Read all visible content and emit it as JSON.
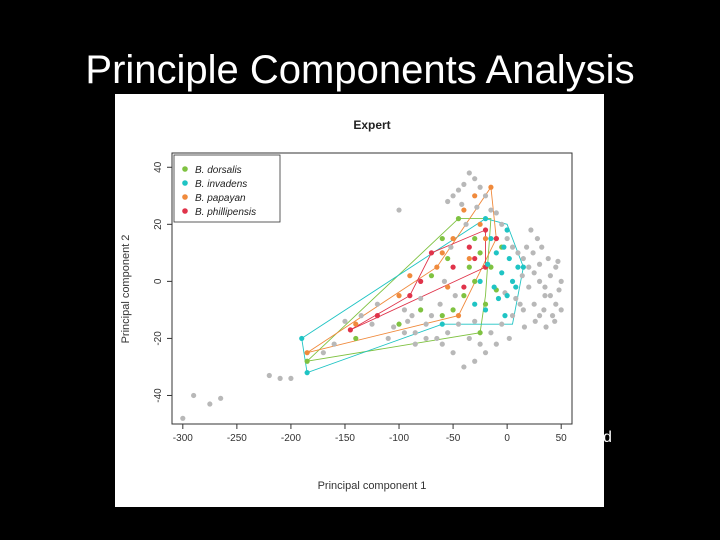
{
  "slide": {
    "title": "Principle Components Analysis",
    "stray_text": "d"
  },
  "chart_data": {
    "type": "scatter",
    "title": "Expert",
    "xlabel": "Principal component 1",
    "ylabel": "Principal component 2",
    "xlim": [
      -310,
      60
    ],
    "ylim": [
      -50,
      45
    ],
    "xticks": [
      -300,
      -250,
      -200,
      -150,
      -100,
      -50,
      0,
      50
    ],
    "yticks": [
      -40,
      -20,
      0,
      20,
      40
    ],
    "grid": false,
    "legend_position": "top-left",
    "series": [
      {
        "name": "B. dorsalis",
        "color": "#7fc241",
        "hull": [
          [
            -185,
            -28
          ],
          [
            -25,
            -18
          ],
          [
            -20,
            -5
          ],
          [
            -15,
            22
          ],
          [
            -45,
            22
          ],
          [
            -185,
            -28
          ]
        ],
        "points": [
          [
            -185,
            -28
          ],
          [
            -140,
            -20
          ],
          [
            -100,
            -15
          ],
          [
            -80,
            -10
          ],
          [
            -60,
            -12
          ],
          [
            -40,
            -5
          ],
          [
            -35,
            5
          ],
          [
            -25,
            10
          ],
          [
            -30,
            0
          ],
          [
            -20,
            -8
          ],
          [
            -50,
            -10
          ],
          [
            -70,
            2
          ],
          [
            -60,
            15
          ],
          [
            -45,
            22
          ],
          [
            -15,
            5
          ],
          [
            -10,
            -3
          ],
          [
            -25,
            -18
          ],
          [
            -55,
            8
          ],
          [
            -30,
            15
          ],
          [
            -5,
            12
          ]
        ]
      },
      {
        "name": "B. invadens",
        "color": "#1fc4c4",
        "hull": [
          [
            -190,
            -20
          ],
          [
            -185,
            -32
          ],
          [
            -60,
            -15
          ],
          [
            5,
            -15
          ],
          [
            15,
            5
          ],
          [
            0,
            20
          ],
          [
            -20,
            22
          ],
          [
            -190,
            -20
          ]
        ],
        "points": [
          [
            -190,
            -20
          ],
          [
            -185,
            -32
          ],
          [
            -60,
            -15
          ],
          [
            -20,
            -10
          ],
          [
            0,
            -5
          ],
          [
            5,
            0
          ],
          [
            10,
            5
          ],
          [
            -10,
            10
          ],
          [
            -15,
            15
          ],
          [
            -20,
            22
          ],
          [
            0,
            18
          ],
          [
            -5,
            3
          ],
          [
            -12,
            -2
          ],
          [
            2,
            8
          ],
          [
            -8,
            -6
          ],
          [
            15,
            5
          ],
          [
            -3,
            12
          ],
          [
            -18,
            6
          ],
          [
            -25,
            0
          ],
          [
            -30,
            -8
          ],
          [
            8,
            -2
          ],
          [
            -2,
            -12
          ]
        ]
      },
      {
        "name": "B. papayan",
        "color": "#f08a3c",
        "hull": [
          [
            -185,
            -25
          ],
          [
            -65,
            5
          ],
          [
            -15,
            33
          ],
          [
            -10,
            15
          ],
          [
            -45,
            -12
          ],
          [
            -185,
            -25
          ]
        ],
        "points": [
          [
            -185,
            -25
          ],
          [
            -140,
            -15
          ],
          [
            -100,
            -5
          ],
          [
            -90,
            2
          ],
          [
            -65,
            5
          ],
          [
            -60,
            10
          ],
          [
            -50,
            15
          ],
          [
            -40,
            25
          ],
          [
            -30,
            30
          ],
          [
            -15,
            33
          ],
          [
            -25,
            20
          ],
          [
            -20,
            15
          ],
          [
            -35,
            8
          ],
          [
            -10,
            15
          ],
          [
            -45,
            -12
          ],
          [
            -55,
            -2
          ]
        ]
      },
      {
        "name": "B. phillipensis",
        "color": "#e0334a",
        "hull": [
          [
            -145,
            -17
          ],
          [
            -90,
            -5
          ],
          [
            -70,
            10
          ],
          [
            -20,
            18
          ],
          [
            -20,
            5
          ],
          [
            -145,
            -17
          ]
        ],
        "points": [
          [
            -145,
            -17
          ],
          [
            -120,
            -12
          ],
          [
            -90,
            -5
          ],
          [
            -80,
            0
          ],
          [
            -70,
            10
          ],
          [
            -50,
            5
          ],
          [
            -40,
            -2
          ],
          [
            -30,
            8
          ],
          [
            -20,
            18
          ],
          [
            -20,
            5
          ],
          [
            -10,
            15
          ],
          [
            -35,
            12
          ]
        ]
      },
      {
        "name": "",
        "color": "#b8b8b8",
        "points": [
          [
            -300,
            -48
          ],
          [
            -290,
            -40
          ],
          [
            -275,
            -43
          ],
          [
            -265,
            -41
          ],
          [
            -220,
            -33
          ],
          [
            -210,
            -34
          ],
          [
            -200,
            -34
          ],
          [
            -170,
            -25
          ],
          [
            -160,
            -22
          ],
          [
            -150,
            -14
          ],
          [
            -135,
            -12
          ],
          [
            -125,
            -15
          ],
          [
            -120,
            -8
          ],
          [
            -95,
            -10
          ],
          [
            -92,
            -14
          ],
          [
            -88,
            -12
          ],
          [
            -85,
            -18
          ],
          [
            -80,
            -6
          ],
          [
            -75,
            -15
          ],
          [
            -70,
            -12
          ],
          [
            -100,
            25
          ],
          [
            -55,
            28
          ],
          [
            -50,
            30
          ],
          [
            -45,
            32
          ],
          [
            -40,
            34
          ],
          [
            -35,
            38
          ],
          [
            -30,
            36
          ],
          [
            -25,
            33
          ],
          [
            -20,
            30
          ],
          [
            -42,
            27
          ],
          [
            -38,
            20
          ],
          [
            -28,
            26
          ],
          [
            -15,
            25
          ],
          [
            -10,
            24
          ],
          [
            -5,
            20
          ],
          [
            0,
            15
          ],
          [
            5,
            12
          ],
          [
            10,
            10
          ],
          [
            15,
            8
          ],
          [
            20,
            5
          ],
          [
            25,
            3
          ],
          [
            30,
            0
          ],
          [
            35,
            -2
          ],
          [
            40,
            -5
          ],
          [
            45,
            -8
          ],
          [
            50,
            -10
          ],
          [
            -65,
            -20
          ],
          [
            -55,
            -18
          ],
          [
            -45,
            -15
          ],
          [
            -35,
            -20
          ],
          [
            -25,
            -22
          ],
          [
            -15,
            -18
          ],
          [
            -5,
            -15
          ],
          [
            5,
            -12
          ],
          [
            15,
            -10
          ],
          [
            25,
            -8
          ],
          [
            35,
            -5
          ],
          [
            40,
            2
          ],
          [
            45,
            5
          ],
          [
            48,
            -3
          ],
          [
            42,
            -12
          ],
          [
            30,
            -12
          ],
          [
            38,
            8
          ],
          [
            32,
            12
          ],
          [
            28,
            15
          ],
          [
            22,
            18
          ],
          [
            18,
            12
          ],
          [
            12,
            -8
          ],
          [
            2,
            -20
          ],
          [
            -10,
            -22
          ],
          [
            -20,
            -25
          ],
          [
            -30,
            -28
          ],
          [
            -40,
            -30
          ],
          [
            -50,
            -25
          ],
          [
            -60,
            -22
          ],
          [
            -75,
            -20
          ],
          [
            -85,
            -22
          ],
          [
            -95,
            -18
          ],
          [
            -105,
            -16
          ],
          [
            -110,
            -20
          ],
          [
            -48,
            -5
          ],
          [
            -58,
            0
          ],
          [
            -62,
            -8
          ],
          [
            -52,
            12
          ],
          [
            -30,
            -14
          ],
          [
            50,
            0
          ],
          [
            47,
            7
          ],
          [
            44,
            -14
          ],
          [
            36,
            -16
          ],
          [
            26,
            -14
          ],
          [
            16,
            -16
          ],
          [
            8,
            -6
          ],
          [
            -2,
            -4
          ],
          [
            20,
            -2
          ],
          [
            30,
            6
          ],
          [
            34,
            -10
          ],
          [
            24,
            10
          ],
          [
            14,
            2
          ]
        ]
      }
    ]
  }
}
